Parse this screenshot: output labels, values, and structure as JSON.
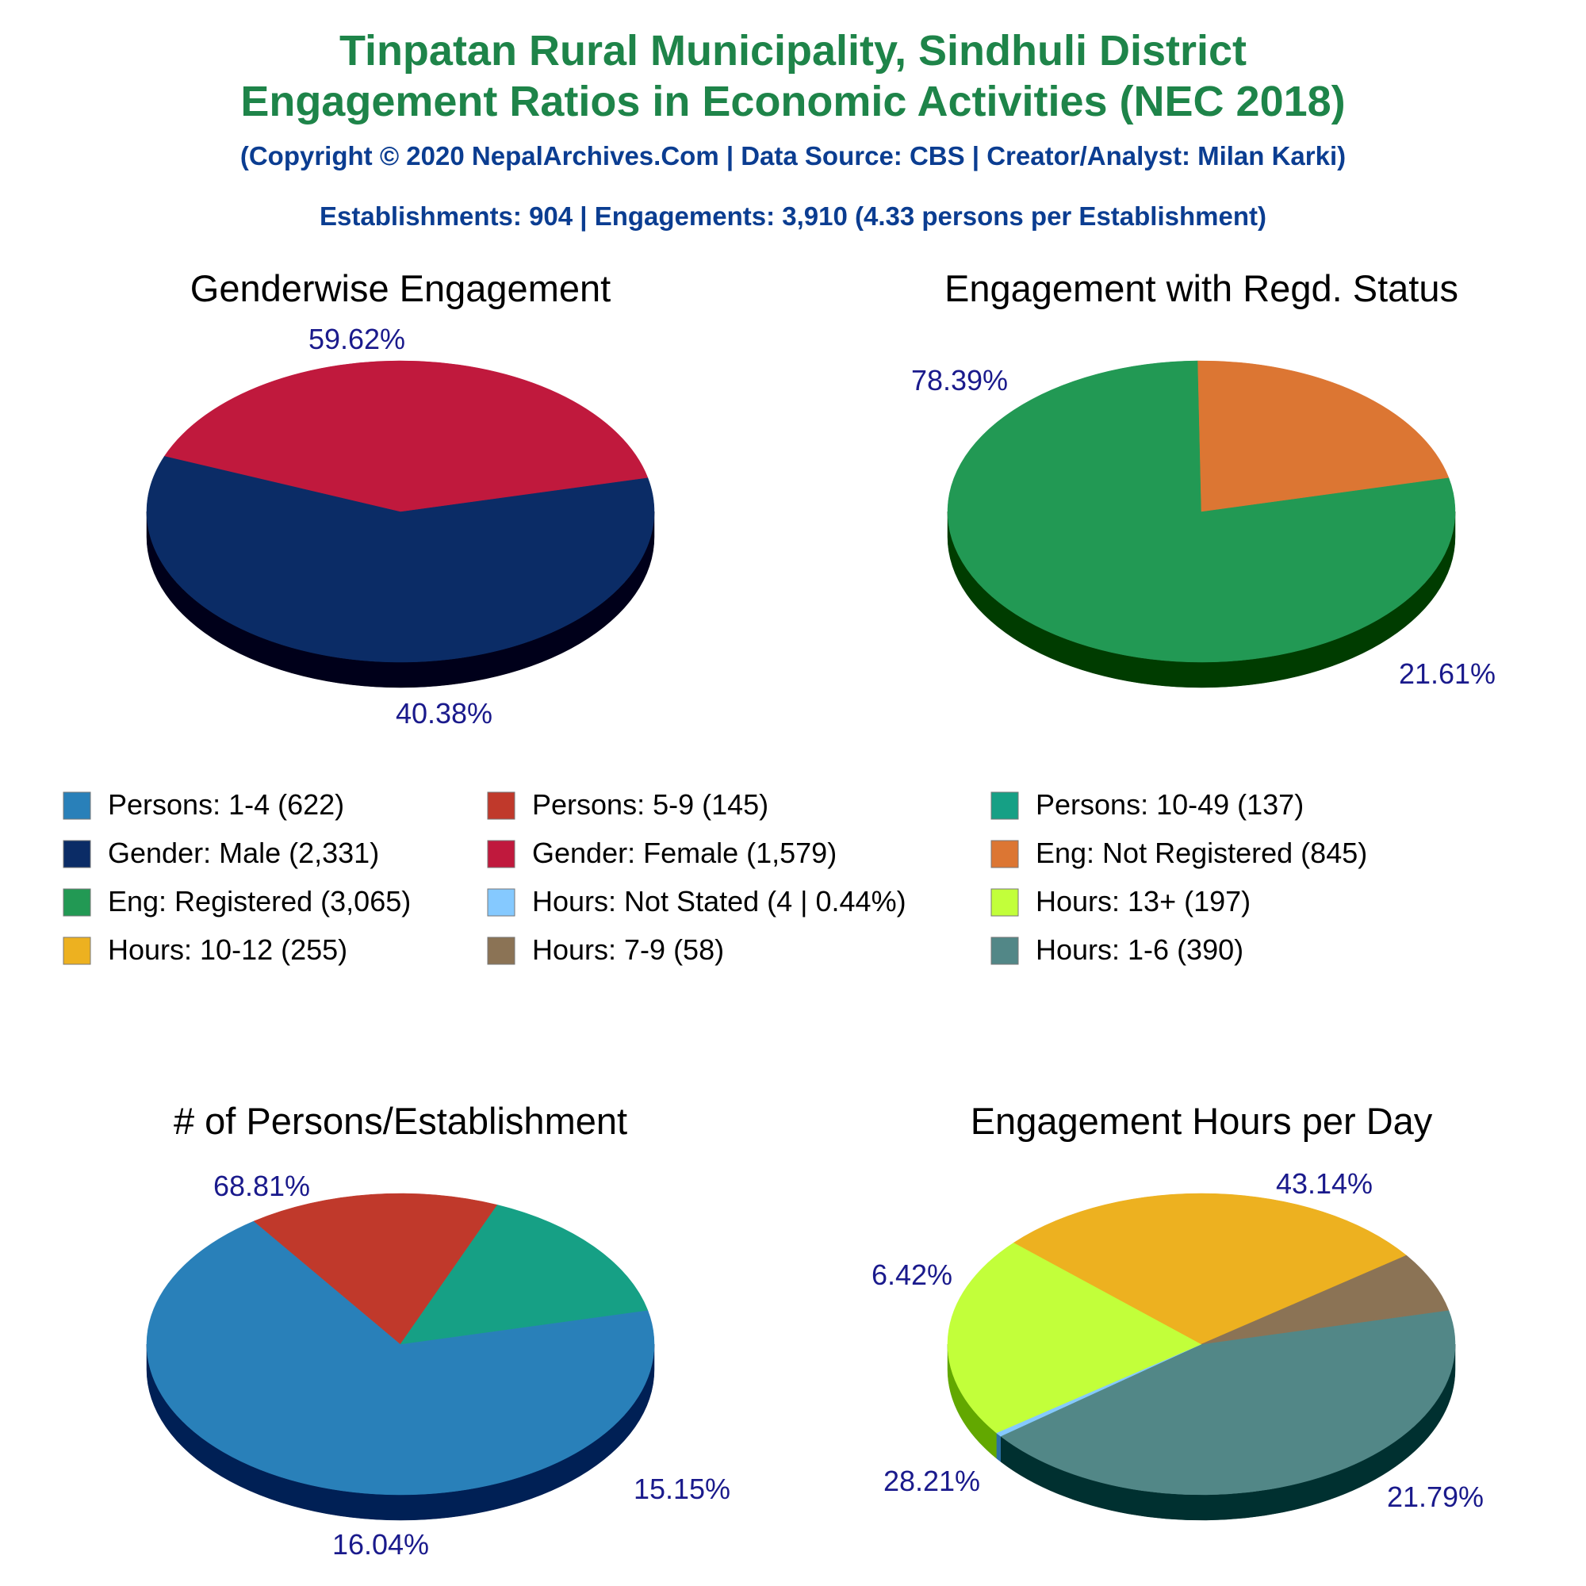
{
  "header": {
    "title_line1": "Tinpatan Rural Municipality, Sindhuli District",
    "title_line2": "Engagement Ratios in Economic Activities (NEC 2018)",
    "copyright": "(Copyright © 2020 NepalArchives.Com | Data Source: CBS | Creator/Analyst: Milan Karki)",
    "summary": "Establishments: 904 | Engagements: 3,910 (4.33 persons per Establishment)"
  },
  "legend": [
    {
      "label": "Persons: 1-4 (622)",
      "color": "#2980b9"
    },
    {
      "label": "Persons: 5-9 (145)",
      "color": "#c0392b"
    },
    {
      "label": "Persons: 10-49 (137)",
      "color": "#16a085"
    },
    {
      "label": "Gender: Male (2,331)",
      "color": "#0b2c66"
    },
    {
      "label": "Gender: Female (1,579)",
      "color": "#c0193d"
    },
    {
      "label": "Eng: Not Registered (845)",
      "color": "#dc7633"
    },
    {
      "label": "Eng: Registered (3,065)",
      "color": "#229954"
    },
    {
      "label": "Hours: Not Stated (4 | 0.44%)",
      "color": "#85c9ff"
    },
    {
      "label": "Hours: 13+ (197)",
      "color": "#c2ff3a"
    },
    {
      "label": "Hours: 10-12 (255)",
      "color": "#edb120"
    },
    {
      "label": "Hours: 7-9 (58)",
      "color": "#8b7355"
    },
    {
      "label": "Hours: 1-6 (390)",
      "color": "#528787"
    }
  ],
  "chart_data": [
    {
      "type": "pie",
      "title": "Genderwise Engagement",
      "categories": [
        "Gender: Male",
        "Gender: Female"
      ],
      "values": [
        2331,
        1579
      ],
      "percent_labels": [
        "59.62%",
        "40.38%"
      ],
      "colors": [
        "#0b2c66",
        "#c0193d"
      ],
      "side_colors": [
        "#00001a",
        "#660000"
      ]
    },
    {
      "type": "pie",
      "title": "Engagement with Regd. Status",
      "categories": [
        "Eng: Registered",
        "Eng: Not Registered"
      ],
      "values": [
        3065,
        845
      ],
      "percent_labels": [
        "78.39%",
        "21.61%"
      ],
      "colors": [
        "#229954",
        "#dc7633"
      ],
      "side_colors": [
        "#003c00",
        "#7e1a00"
      ]
    },
    {
      "type": "pie",
      "title": "# of Persons/Establishment",
      "categories": [
        "Persons: 1-4",
        "Persons: 5-9",
        "Persons: 10-49"
      ],
      "values": [
        622,
        145,
        137
      ],
      "percent_labels": [
        "68.81%",
        "16.04%",
        "15.15%"
      ],
      "colors": [
        "#2980b9",
        "#c0392b",
        "#16a085"
      ],
      "side_colors": [
        "#002055",
        "#660000",
        "#004030"
      ]
    },
    {
      "type": "pie",
      "title": "Engagement Hours per Day",
      "categories": [
        "Hours: 1-6",
        "Hours: Not Stated",
        "Hours: 13+",
        "Hours: 10-12",
        "Hours: 7-9"
      ],
      "values": [
        390,
        4,
        197,
        255,
        58
      ],
      "percent_labels": [
        "43.14%",
        "",
        "21.79%",
        "28.21%",
        "6.42%"
      ],
      "colors": [
        "#528787",
        "#85c9ff",
        "#c2ff3a",
        "#edb120",
        "#8b7355"
      ],
      "side_colors": [
        "#003030",
        "#2b6fa5",
        "#62a800",
        "#925a00",
        "#2f1f00"
      ]
    }
  ]
}
